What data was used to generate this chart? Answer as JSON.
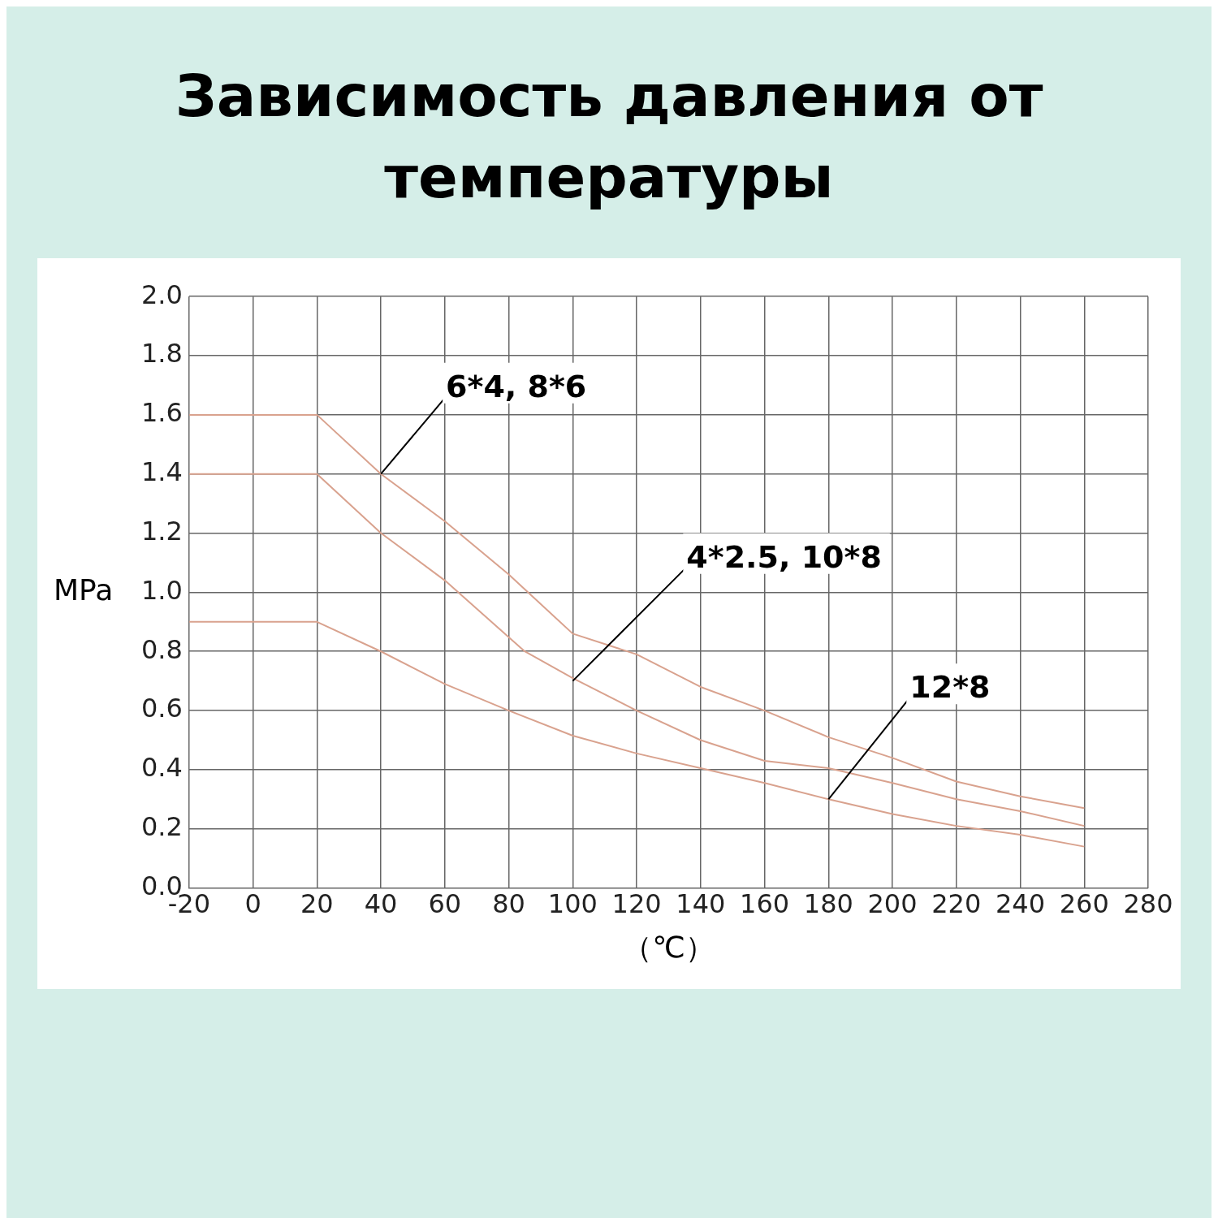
{
  "chart_data": {
    "type": "line",
    "title": "Зависимость давления от температуры",
    "xlabel": "（℃）",
    "ylabel": "MPa",
    "xlim": [
      -20,
      280
    ],
    "xticks": [
      -20,
      0,
      20,
      40,
      60,
      80,
      100,
      120,
      140,
      160,
      180,
      200,
      220,
      240,
      260,
      280
    ],
    "ylim": [
      0,
      2
    ],
    "yticks": [
      {
        "value": 0,
        "label": "0.0"
      },
      0.2,
      0.4,
      0.6,
      0.8,
      {
        "value": 1,
        "label": "1.0"
      },
      1.2,
      1.4,
      1.6,
      1.8,
      {
        "value": 2,
        "label": "2.0"
      }
    ],
    "grid": true,
    "legend": false,
    "marker": "none",
    "line_style": "solid",
    "series": [
      {
        "color": "#d9a28e",
        "x": [
          -20,
          20,
          40,
          60,
          80,
          100,
          120,
          140,
          160,
          180,
          200,
          220,
          240,
          260
        ],
        "values": [
          1.6,
          1.6,
          1.4,
          1.24,
          1.06,
          0.86,
          0.79,
          0.68,
          0.6,
          0.51,
          0.44,
          0.36,
          0.31,
          0.27
        ]
      },
      {
        "color": "#d9a28e",
        "x": [
          -20,
          20,
          40,
          60,
          85,
          100,
          120,
          140,
          160,
          180,
          200,
          220,
          240,
          260
        ],
        "values": [
          1.4,
          1.4,
          1.2,
          1.04,
          0.8,
          0.71,
          0.6,
          0.5,
          0.43,
          0.405,
          0.355,
          0.3,
          0.26,
          0.21
        ]
      },
      {
        "color": "#d9a28e",
        "x": [
          -20,
          20,
          40,
          60,
          80,
          100,
          120,
          140,
          160,
          180,
          200,
          220,
          240,
          260
        ],
        "values": [
          0.9,
          0.9,
          0.8,
          0.69,
          0.6,
          0.515,
          0.455,
          0.405,
          0.355,
          0.3,
          0.25,
          0.21,
          0.18,
          0.14
        ]
      }
    ],
    "annotations": [
      {
        "text": "6*4, 8*6",
        "x": 40,
        "y": 1.4
      },
      {
        "text": "4*2.5, 10*8",
        "x": 100,
        "y": 0.7
      },
      {
        "text": "12*8",
        "x": 180,
        "y": 0.3
      }
    ]
  }
}
